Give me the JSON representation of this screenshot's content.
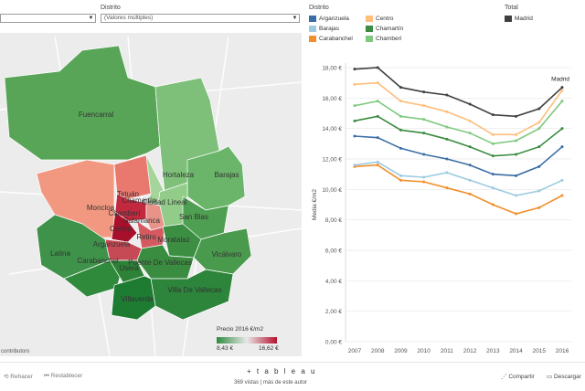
{
  "filters": {
    "distrito_label": "Distrito",
    "distrito_value": "(Valores múltiples)"
  },
  "legend": {
    "distrito_title": "Distrito",
    "total_title": "Total",
    "items": [
      {
        "name": "Arganzuela",
        "color": "#3b6ea5"
      },
      {
        "name": "Barajas",
        "color": "#9ecae1"
      },
      {
        "name": "Carabanchel",
        "color": "#f28e2b"
      },
      {
        "name": "Centro",
        "color": "#ffbe7d"
      },
      {
        "name": "Chamartín",
        "color": "#3a8c3f"
      },
      {
        "name": "Chamberí",
        "color": "#7fc97f"
      },
      {
        "name": "Madrid",
        "color": "#404040"
      }
    ]
  },
  "map": {
    "attribution": "contributors",
    "districts": [
      "Fuencarral",
      "Hortaleza",
      "Barajas",
      "Tetuán",
      "Chamartín",
      "Moncloa",
      "Ciudad Lineal",
      "Chamberí",
      "Salamanca",
      "San Blas",
      "Centro",
      "Retiro",
      "Arganzuela",
      "Moratalaz",
      "Latina",
      "Carabanchel",
      "Puente De Vallecas",
      "Vicálvaro",
      "Usera",
      "Villa De Vallecas",
      "Villaverde"
    ],
    "legend_title": "Precio 2016 €/m2",
    "legend_min": "8,43 €",
    "legend_max": "16,62 €"
  },
  "chart_data": {
    "type": "line",
    "x": [
      2007,
      2008,
      2009,
      2010,
      2011,
      2012,
      2013,
      2014,
      2015,
      2016
    ],
    "ylabel": "Media €/m2",
    "ylim": [
      0,
      18
    ],
    "yticks": [
      "0,00 €",
      "2,00 €",
      "4,00 €",
      "6,00 €",
      "8,00 €",
      "10,00 €",
      "12,00 €",
      "14,00 €",
      "16,00 €",
      "18,00 €"
    ],
    "annotation": "Madrid",
    "grid": true,
    "series": [
      {
        "name": "Madrid",
        "color": "#404040",
        "values": [
          17.9,
          18.0,
          16.7,
          16.4,
          16.2,
          15.6,
          14.9,
          14.8,
          15.3,
          16.7
        ]
      },
      {
        "name": "Centro",
        "color": "#ffbe7d",
        "values": [
          16.9,
          17.0,
          15.8,
          15.5,
          15.1,
          14.5,
          13.6,
          13.6,
          14.4,
          16.5
        ]
      },
      {
        "name": "Chamberí",
        "color": "#7fc97f",
        "values": [
          15.5,
          15.8,
          14.8,
          14.6,
          14.1,
          13.7,
          13.0,
          13.2,
          14.0,
          15.8
        ]
      },
      {
        "name": "Chamartín",
        "color": "#3a8c3f",
        "values": [
          14.5,
          14.8,
          13.9,
          13.7,
          13.3,
          12.8,
          12.2,
          12.3,
          12.8,
          14.0
        ]
      },
      {
        "name": "Arganzuela",
        "color": "#3b6ea5",
        "values": [
          13.5,
          13.4,
          12.7,
          12.3,
          12.0,
          11.6,
          11.0,
          10.9,
          11.5,
          12.8
        ]
      },
      {
        "name": "Barajas",
        "color": "#9ecae1",
        "values": [
          11.6,
          11.8,
          10.9,
          10.8,
          11.1,
          10.6,
          10.1,
          9.6,
          9.9,
          10.6
        ]
      },
      {
        "name": "Carabanchel",
        "color": "#f28e2b",
        "values": [
          11.5,
          11.6,
          10.6,
          10.5,
          10.1,
          9.7,
          9.0,
          8.4,
          8.8,
          9.6
        ]
      }
    ]
  },
  "footer": {
    "undo": "Rehacer",
    "reset": "Restablecer",
    "brand": "+ t a b l e a u",
    "views": "369 vistas | más de este autor",
    "share": "Compartir",
    "download": "Descargar"
  }
}
